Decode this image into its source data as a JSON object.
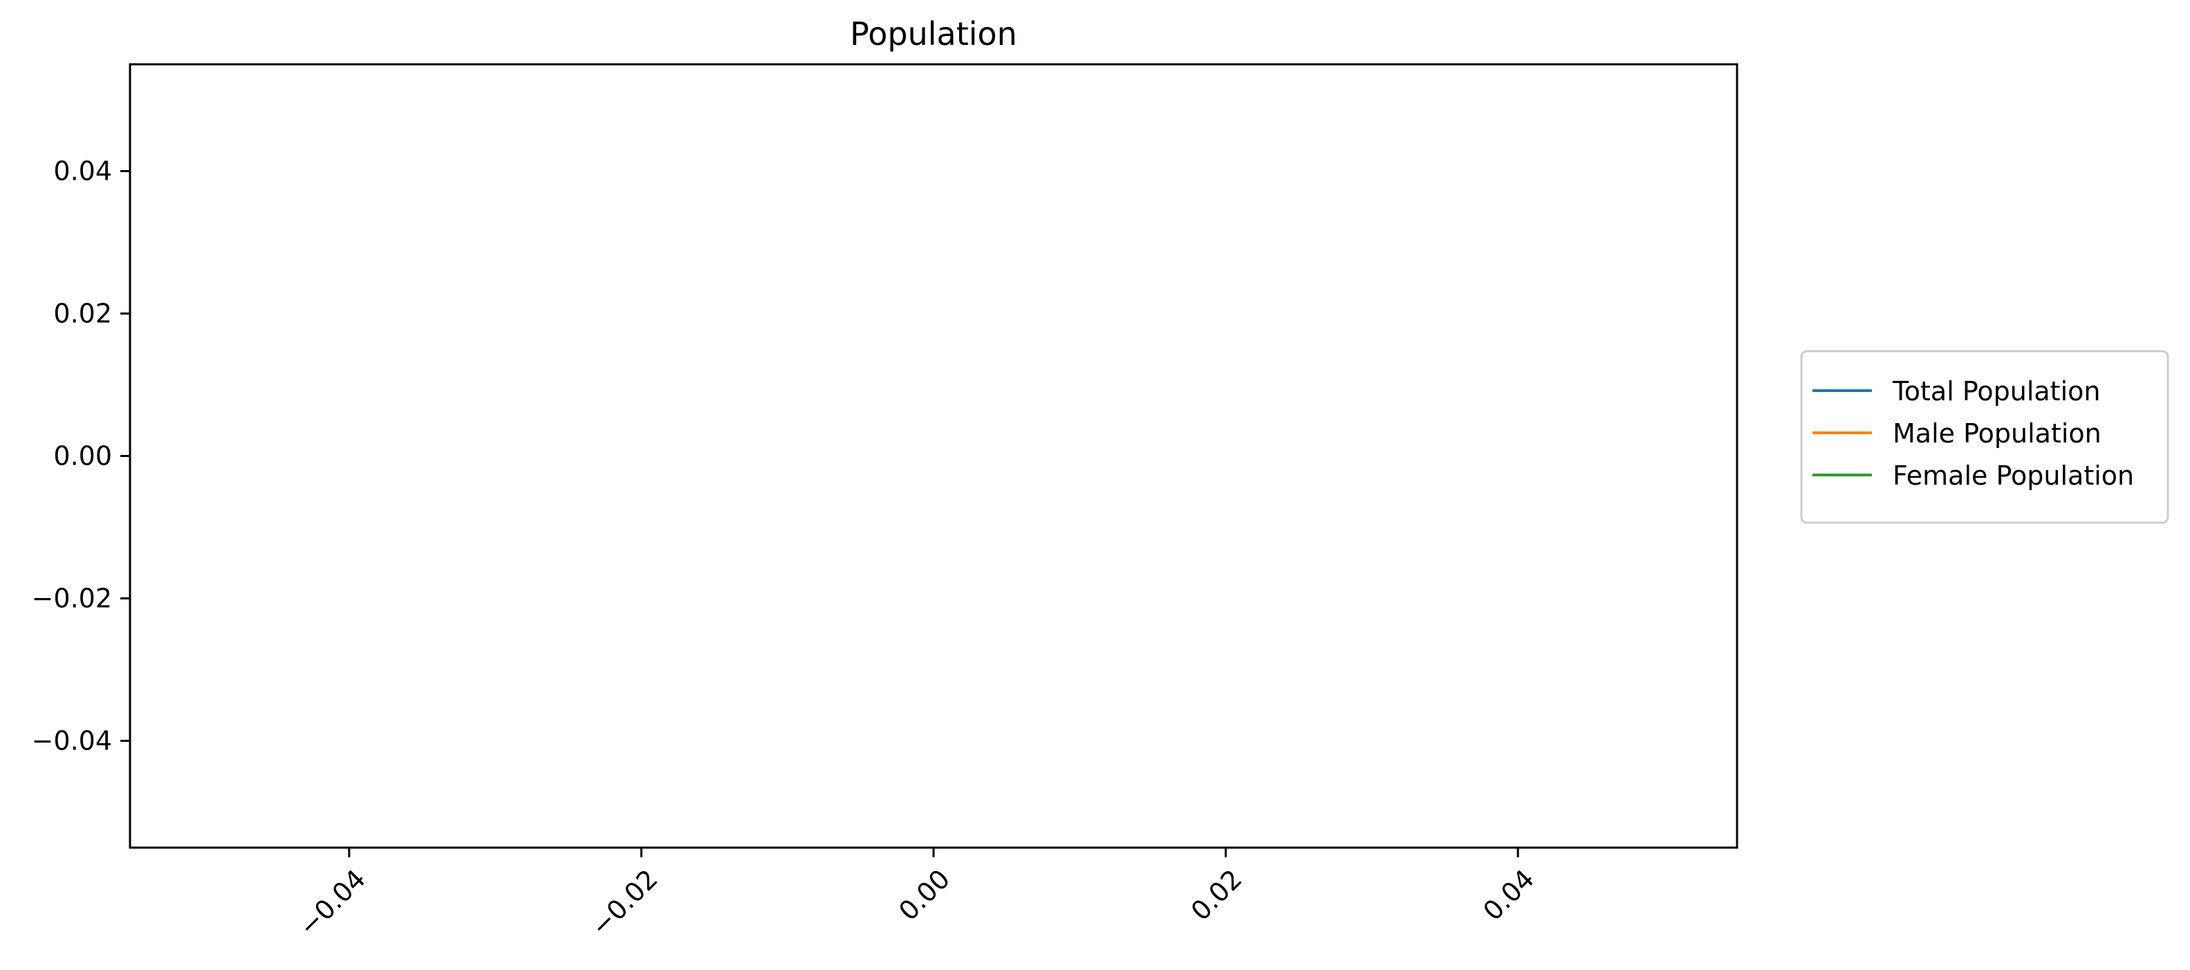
{
  "chart_data": {
    "type": "line",
    "title": "Population",
    "xlabel": "",
    "ylabel": "",
    "xlim": [
      -0.055,
      0.055
    ],
    "ylim": [
      -0.055,
      0.055
    ],
    "x_ticks": [
      -0.04,
      -0.02,
      0.0,
      0.02,
      0.04
    ],
    "x_tick_labels": [
      "−0.04",
      "−0.02",
      "0.00",
      "0.02",
      "0.04"
    ],
    "x_tick_rotation": 45,
    "y_ticks": [
      0.04,
      0.02,
      0.0,
      -0.02,
      -0.04
    ],
    "y_tick_labels": [
      "0.04",
      "0.02",
      "0.00",
      "−0.02",
      "−0.04"
    ],
    "grid": false,
    "legend": {
      "placement": "outside-right",
      "entries": [
        "Total Population",
        "Male Population",
        "Female Population"
      ]
    },
    "series": [
      {
        "name": "Total Population",
        "color": "#1f77b4",
        "x": [],
        "y": []
      },
      {
        "name": "Male Population",
        "color": "#ff7f0e",
        "x": [],
        "y": []
      },
      {
        "name": "Female Population",
        "color": "#2ca02c",
        "x": [],
        "y": []
      }
    ]
  }
}
